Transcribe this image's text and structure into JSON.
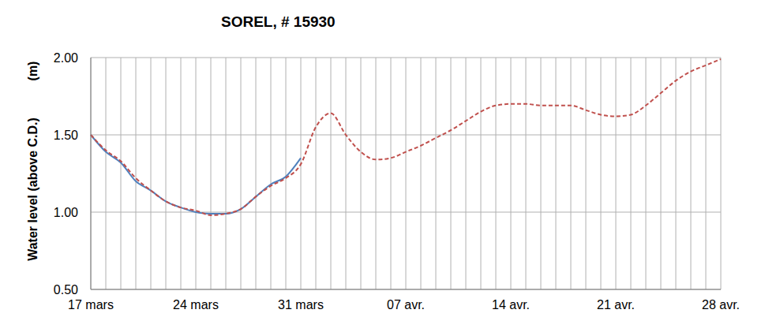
{
  "chart_data": {
    "type": "line",
    "title": "SOREL, # 15930",
    "ylabel": "Water level (above C.D.)",
    "yunit": "(m)",
    "categories": [
      "17 mars",
      null,
      null,
      null,
      null,
      null,
      null,
      "24 mars",
      null,
      null,
      null,
      null,
      null,
      null,
      "31 mars",
      null,
      null,
      null,
      null,
      null,
      null,
      "07 avr.",
      null,
      null,
      null,
      null,
      null,
      null,
      "14 avr.",
      null,
      null,
      null,
      null,
      null,
      null,
      "21 avr.",
      null,
      null,
      null,
      null,
      null,
      null,
      "28 avr."
    ],
    "series": [
      {
        "color": "#4f81bd",
        "line_style": "solid",
        "values": [
          1.5,
          1.39,
          1.32,
          1.2,
          1.14,
          1.07,
          1.03,
          1.0,
          0.99,
          0.99,
          1.02,
          1.1,
          1.18,
          1.23,
          1.35,
          null,
          null,
          null,
          null,
          null,
          null,
          null,
          null,
          null,
          null,
          null,
          null,
          null,
          null,
          null,
          null,
          null,
          null,
          null,
          null,
          null,
          null,
          null,
          null,
          null,
          null,
          null,
          null
        ]
      },
      {
        "color": "#c0504d",
        "line_style": "dashed",
        "values": [
          1.5,
          1.4,
          1.33,
          1.22,
          1.14,
          1.07,
          1.03,
          1.01,
          0.98,
          0.99,
          1.02,
          1.1,
          1.17,
          1.22,
          1.31,
          1.55,
          1.64,
          1.5,
          1.39,
          1.34,
          1.35,
          1.39,
          1.43,
          1.48,
          1.53,
          1.59,
          1.65,
          1.69,
          1.7,
          1.7,
          1.69,
          1.69,
          1.69,
          1.66,
          1.63,
          1.62,
          1.63,
          1.69,
          1.77,
          1.85,
          1.91,
          1.95,
          1.99
        ]
      }
    ],
    "ylim": [
      0.5,
      2.0
    ],
    "yticks": [
      {
        "value": 0.5,
        "label": "0.50"
      },
      {
        "value": 1.0,
        "label": "1.00"
      },
      {
        "value": 1.5,
        "label": "1.50"
      },
      {
        "value": 2.0,
        "label": "2.00"
      }
    ],
    "grid": true
  }
}
